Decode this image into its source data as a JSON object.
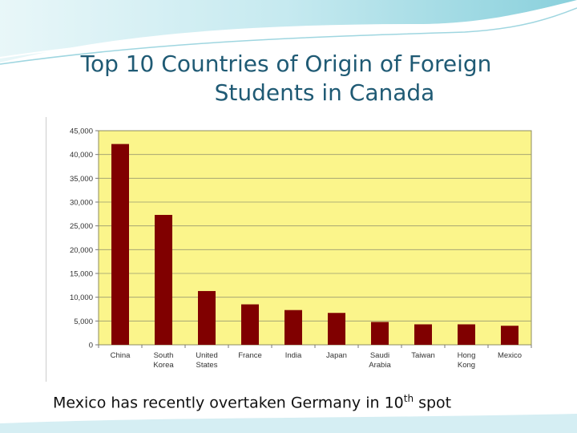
{
  "slide": {
    "title_line1": "Top 10 Countries of Origin of Foreign",
    "title_line2": "Students in Canada",
    "caption_text": "Mexico has recently overtaken Germany in 10",
    "caption_sup": "th",
    "caption_tail": " spot"
  },
  "colors": {
    "title": "#1f5a74",
    "plot_background": "#fbf58b",
    "bar": "#800000",
    "grid": "#9a9a70"
  },
  "chart_data": {
    "type": "bar",
    "title": "",
    "xlabel": "",
    "ylabel": "",
    "ylim": [
      0,
      45000
    ],
    "yticks": [
      0,
      5000,
      10000,
      15000,
      20000,
      25000,
      30000,
      35000,
      40000,
      45000
    ],
    "ytick_labels": [
      "0",
      "5,000",
      "10,000",
      "15,000",
      "20,000",
      "25,000",
      "30,000",
      "35,000",
      "40,000",
      "45,000"
    ],
    "categories": [
      [
        "China"
      ],
      [
        "South",
        "Korea"
      ],
      [
        "United",
        "States"
      ],
      [
        "France"
      ],
      [
        "India"
      ],
      [
        "Japan"
      ],
      [
        "Saudi",
        "Arabia"
      ],
      [
        "Taiwan"
      ],
      [
        "Hong",
        "Kong"
      ],
      [
        "Mexico"
      ]
    ],
    "values": [
      42200,
      27300,
      11300,
      8500,
      7300,
      6700,
      4800,
      4300,
      4300,
      4000
    ],
    "grid": true,
    "legend": "none"
  }
}
